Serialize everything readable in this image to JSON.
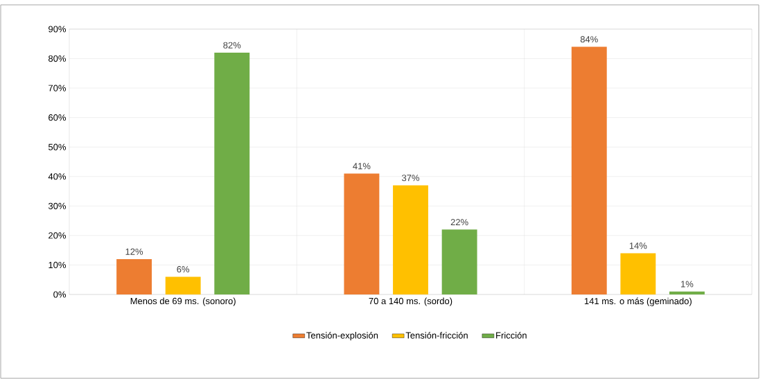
{
  "chart_data": {
    "type": "bar",
    "categories": [
      "Menos de 69 ms. (sonoro)",
      "70 a 140 ms. (sordo)",
      "141 ms. o más (geminado)"
    ],
    "series": [
      {
        "name": "Tensión-explosión",
        "color": "#ed7d31",
        "values": [
          12,
          41,
          84
        ],
        "value_labels": [
          "12%",
          "41%",
          "84%"
        ]
      },
      {
        "name": "Tensión-fricción",
        "color": "#ffc000",
        "values": [
          6,
          37,
          14
        ],
        "value_labels": [
          "6%",
          "37%",
          "14%"
        ]
      },
      {
        "name": "Fricción",
        "color": "#70ad47",
        "values": [
          82,
          22,
          1
        ],
        "value_labels": [
          "82%",
          "22%",
          "1%"
        ]
      }
    ],
    "ylim": [
      0,
      90
    ],
    "yticks": [
      {
        "value": 0,
        "label": "0%"
      },
      {
        "value": 10,
        "label": "10%"
      },
      {
        "value": 20,
        "label": "20%"
      },
      {
        "value": 30,
        "label": "30%"
      },
      {
        "value": 40,
        "label": "40%"
      },
      {
        "value": 50,
        "label": "50%"
      },
      {
        "value": 60,
        "label": "60%"
      },
      {
        "value": 70,
        "label": "70%"
      },
      {
        "value": 80,
        "label": "80%"
      },
      {
        "value": 90,
        "label": "90%"
      }
    ],
    "grid": true,
    "legend": "bottom"
  }
}
